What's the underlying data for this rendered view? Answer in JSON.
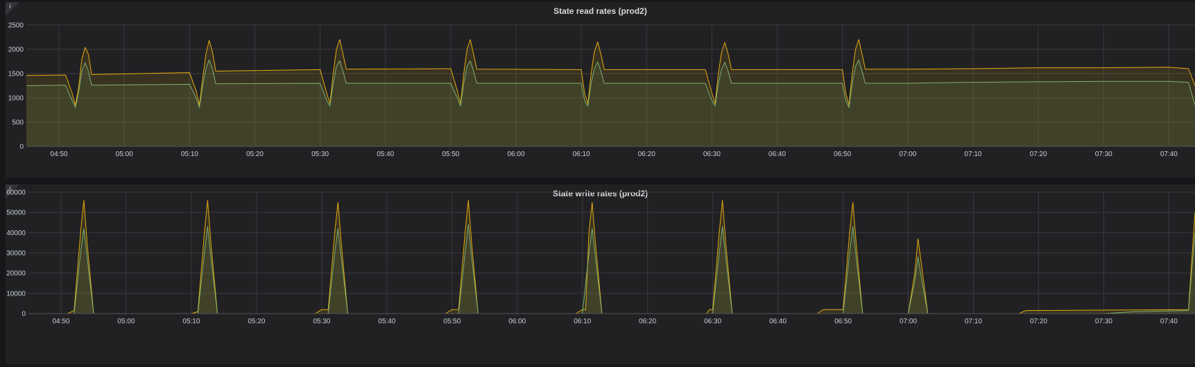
{
  "colors": {
    "background": "#161719",
    "panel": "#212124",
    "grid": "#3a3a3e",
    "series_yellow": "#e5ac0e",
    "series_green": "#7eb26d"
  },
  "panel_info_icon": "i",
  "chart_data": [
    {
      "type": "area",
      "title": "State read rates (prod2)",
      "xlabel": "",
      "ylabel": "",
      "x_ticks": [
        "04:50",
        "05:00",
        "05:10",
        "05:20",
        "05:30",
        "05:40",
        "05:50",
        "06:00",
        "06:10",
        "06:20",
        "06:30",
        "06:40",
        "06:50",
        "07:00",
        "07:10",
        "07:20",
        "07:30",
        "07:40"
      ],
      "x_range": [
        "04:45",
        "07:44"
      ],
      "y_ticks": [
        0,
        500,
        1000,
        1500,
        2000,
        2500
      ],
      "ylim": [
        0,
        2500
      ],
      "grid": true,
      "legend": "none",
      "series": [
        {
          "color": "#e5ac0e",
          "points": [
            [
              "04:45",
              1460
            ],
            [
              "04:51",
              1470
            ],
            [
              "04:52",
              1100
            ],
            [
              "04:52:30",
              850
            ],
            [
              "04:53",
              1200
            ],
            [
              "04:53:30",
              1800
            ],
            [
              "04:54",
              2040
            ],
            [
              "04:54:30",
              1900
            ],
            [
              "04:55",
              1480
            ],
            [
              "05:10",
              1520
            ],
            [
              "05:11",
              1150
            ],
            [
              "05:11:30",
              850
            ],
            [
              "05:12",
              1400
            ],
            [
              "05:12:30",
              1900
            ],
            [
              "05:13",
              2180
            ],
            [
              "05:13:30",
              1950
            ],
            [
              "05:14",
              1550
            ],
            [
              "05:30",
              1580
            ],
            [
              "05:31",
              1100
            ],
            [
              "05:31:30",
              880
            ],
            [
              "05:32",
              1500
            ],
            [
              "05:32:30",
              2000
            ],
            [
              "05:33",
              2200
            ],
            [
              "05:33:30",
              1900
            ],
            [
              "05:34",
              1590
            ],
            [
              "05:50",
              1600
            ],
            [
              "05:51",
              1150
            ],
            [
              "05:51:30",
              880
            ],
            [
              "05:52",
              1500
            ],
            [
              "05:52:30",
              2000
            ],
            [
              "05:53",
              2200
            ],
            [
              "05:53:30",
              1900
            ],
            [
              "05:54",
              1590
            ],
            [
              "06:10",
              1580
            ],
            [
              "06:10:30",
              1100
            ],
            [
              "06:11",
              880
            ],
            [
              "06:11:30",
              1500
            ],
            [
              "06:12",
              1950
            ],
            [
              "06:12:30",
              2150
            ],
            [
              "06:13",
              1900
            ],
            [
              "06:13:30",
              1580
            ],
            [
              "06:29",
              1580
            ],
            [
              "06:30",
              1100
            ],
            [
              "06:30:30",
              880
            ],
            [
              "06:31",
              1500
            ],
            [
              "06:31:30",
              1950
            ],
            [
              "06:32",
              2140
            ],
            [
              "06:32:30",
              1900
            ],
            [
              "06:33",
              1580
            ],
            [
              "06:50",
              1580
            ],
            [
              "06:50:30",
              1100
            ],
            [
              "06:51",
              850
            ],
            [
              "06:51:30",
              1500
            ],
            [
              "06:52",
              2000
            ],
            [
              "06:52:30",
              2200
            ],
            [
              "06:53",
              1900
            ],
            [
              "06:53:30",
              1590
            ],
            [
              "07:00",
              1590
            ],
            [
              "07:10",
              1600
            ],
            [
              "07:20",
              1620
            ],
            [
              "07:30",
              1620
            ],
            [
              "07:40",
              1630
            ],
            [
              "07:43",
              1600
            ],
            [
              "07:44",
              1250
            ]
          ]
        },
        {
          "color": "#7eb26d",
          "points": [
            [
              "04:45",
              1250
            ],
            [
              "04:51",
              1260
            ],
            [
              "04:52",
              950
            ],
            [
              "04:52:30",
              800
            ],
            [
              "04:53",
              1100
            ],
            [
              "04:53:30",
              1550
            ],
            [
              "04:54",
              1720
            ],
            [
              "04:54:30",
              1550
            ],
            [
              "04:55",
              1260
            ],
            [
              "05:10",
              1280
            ],
            [
              "05:11",
              1000
            ],
            [
              "05:11:30",
              800
            ],
            [
              "05:12",
              1250
            ],
            [
              "05:12:30",
              1600
            ],
            [
              "05:13",
              1780
            ],
            [
              "05:13:30",
              1600
            ],
            [
              "05:14",
              1290
            ],
            [
              "05:30",
              1300
            ],
            [
              "05:31",
              950
            ],
            [
              "05:31:30",
              830
            ],
            [
              "05:32",
              1300
            ],
            [
              "05:32:30",
              1650
            ],
            [
              "05:33",
              1760
            ],
            [
              "05:33:30",
              1550
            ],
            [
              "05:34",
              1300
            ],
            [
              "05:50",
              1300
            ],
            [
              "05:51",
              1000
            ],
            [
              "05:51:30",
              830
            ],
            [
              "05:52",
              1300
            ],
            [
              "05:52:30",
              1650
            ],
            [
              "05:53",
              1760
            ],
            [
              "05:53:30",
              1550
            ],
            [
              "05:54",
              1300
            ],
            [
              "06:10",
              1300
            ],
            [
              "06:10:30",
              950
            ],
            [
              "06:11",
              830
            ],
            [
              "06:11:30",
              1300
            ],
            [
              "06:12",
              1600
            ],
            [
              "06:12:30",
              1740
            ],
            [
              "06:13",
              1550
            ],
            [
              "06:13:30",
              1300
            ],
            [
              "06:29",
              1300
            ],
            [
              "06:30",
              950
            ],
            [
              "06:30:30",
              830
            ],
            [
              "06:31",
              1300
            ],
            [
              "06:31:30",
              1600
            ],
            [
              "06:32",
              1730
            ],
            [
              "06:32:30",
              1550
            ],
            [
              "06:33",
              1300
            ],
            [
              "06:50",
              1300
            ],
            [
              "06:50:30",
              950
            ],
            [
              "06:51",
              800
            ],
            [
              "06:51:30",
              1300
            ],
            [
              "06:52",
              1650
            ],
            [
              "06:52:30",
              1780
            ],
            [
              "06:53",
              1550
            ],
            [
              "06:53:30",
              1300
            ],
            [
              "07:00",
              1300
            ],
            [
              "07:10",
              1320
            ],
            [
              "07:20",
              1330
            ],
            [
              "07:30",
              1340
            ],
            [
              "07:40",
              1340
            ],
            [
              "07:43",
              1320
            ],
            [
              "07:44",
              850
            ]
          ]
        }
      ]
    },
    {
      "type": "area",
      "title": "State write rates (prod2)",
      "xlabel": "",
      "ylabel": "",
      "x_ticks": [
        "04:50",
        "05:00",
        "05:10",
        "05:20",
        "05:30",
        "05:40",
        "05:50",
        "06:00",
        "06:10",
        "06:20",
        "06:30",
        "06:40",
        "06:50",
        "07:00",
        "07:10",
        "07:20",
        "07:30",
        "07:40"
      ],
      "x_range": [
        "04:45",
        "07:44"
      ],
      "y_ticks": [
        0,
        10000,
        20000,
        30000,
        40000,
        50000,
        60000
      ],
      "ylim": [
        0,
        60000
      ],
      "grid": true,
      "legend": "none",
      "series": [
        {
          "color": "#e5ac0e",
          "points": [
            [
              "04:45",
              0
            ],
            [
              "04:51",
              0
            ],
            [
              "04:52",
              1500
            ],
            [
              "04:53",
              40000
            ],
            [
              "04:53:30",
              56000
            ],
            [
              "04:54",
              35000
            ],
            [
              "04:55",
              0
            ],
            [
              "05:10",
              0
            ],
            [
              "05:11",
              1000
            ],
            [
              "05:12",
              40000
            ],
            [
              "05:12:30",
              56000
            ],
            [
              "05:13",
              35000
            ],
            [
              "05:14",
              0
            ],
            [
              "05:29",
              0
            ],
            [
              "05:30",
              2000
            ],
            [
              "05:31",
              2000
            ],
            [
              "05:32",
              40000
            ],
            [
              "05:32:30",
              55000
            ],
            [
              "05:33",
              35000
            ],
            [
              "05:34",
              0
            ],
            [
              "05:49",
              0
            ],
            [
              "05:50",
              2000
            ],
            [
              "05:51",
              2000
            ],
            [
              "05:52",
              40000
            ],
            [
              "05:52:30",
              56000
            ],
            [
              "05:53",
              35000
            ],
            [
              "05:54",
              0
            ],
            [
              "06:09",
              0
            ],
            [
              "06:10",
              2000
            ],
            [
              "06:10:30",
              2000
            ],
            [
              "06:11",
              40000
            ],
            [
              "06:11:30",
              55000
            ],
            [
              "06:12",
              35000
            ],
            [
              "06:13",
              0
            ],
            [
              "06:29",
              0
            ],
            [
              "06:29:30",
              2000
            ],
            [
              "06:30",
              2000
            ],
            [
              "06:31",
              40000
            ],
            [
              "06:31:30",
              56000
            ],
            [
              "06:32",
              35000
            ],
            [
              "06:33",
              0
            ],
            [
              "06:46",
              0
            ],
            [
              "06:47",
              2000
            ],
            [
              "06:50",
              2000
            ],
            [
              "06:51",
              40000
            ],
            [
              "06:51:30",
              55000
            ],
            [
              "06:52",
              35000
            ],
            [
              "06:53",
              0
            ],
            [
              "07:00",
              0
            ],
            [
              "07:01",
              20000
            ],
            [
              "07:01:30",
              37000
            ],
            [
              "07:02",
              25000
            ],
            [
              "07:03",
              0
            ],
            [
              "07:17",
              0
            ],
            [
              "07:18",
              1500
            ],
            [
              "07:43",
              2000
            ],
            [
              "07:44",
              50000
            ]
          ]
        },
        {
          "color": "#7eb26d",
          "points": [
            [
              "04:45",
              0
            ],
            [
              "04:52",
              0
            ],
            [
              "04:53",
              30000
            ],
            [
              "04:53:30",
              42000
            ],
            [
              "04:54",
              28000
            ],
            [
              "04:55",
              0
            ],
            [
              "05:11",
              0
            ],
            [
              "05:12",
              30000
            ],
            [
              "05:12:30",
              43000
            ],
            [
              "05:13",
              28000
            ],
            [
              "05:14",
              0
            ],
            [
              "05:31",
              0
            ],
            [
              "05:32",
              30000
            ],
            [
              "05:32:30",
              42000
            ],
            [
              "05:33",
              28000
            ],
            [
              "05:34",
              0
            ],
            [
              "05:51",
              0
            ],
            [
              "05:52",
              30000
            ],
            [
              "05:52:30",
              44000
            ],
            [
              "05:53",
              28000
            ],
            [
              "05:54",
              0
            ],
            [
              "06:10",
              0
            ],
            [
              "06:11",
              30000
            ],
            [
              "06:11:30",
              42000
            ],
            [
              "06:12",
              28000
            ],
            [
              "06:13",
              0
            ],
            [
              "06:30",
              0
            ],
            [
              "06:31",
              30000
            ],
            [
              "06:31:30",
              43000
            ],
            [
              "06:32",
              28000
            ],
            [
              "06:33",
              0
            ],
            [
              "06:50",
              0
            ],
            [
              "06:51",
              30000
            ],
            [
              "06:51:30",
              43000
            ],
            [
              "06:52",
              28000
            ],
            [
              "06:53",
              0
            ],
            [
              "07:00",
              0
            ],
            [
              "07:01",
              16000
            ],
            [
              "07:01:30",
              28000
            ],
            [
              "07:02",
              18000
            ],
            [
              "07:03",
              0
            ],
            [
              "07:30",
              0
            ],
            [
              "07:35",
              1000
            ],
            [
              "07:43",
              1500
            ],
            [
              "07:44",
              40000
            ]
          ]
        }
      ]
    }
  ]
}
